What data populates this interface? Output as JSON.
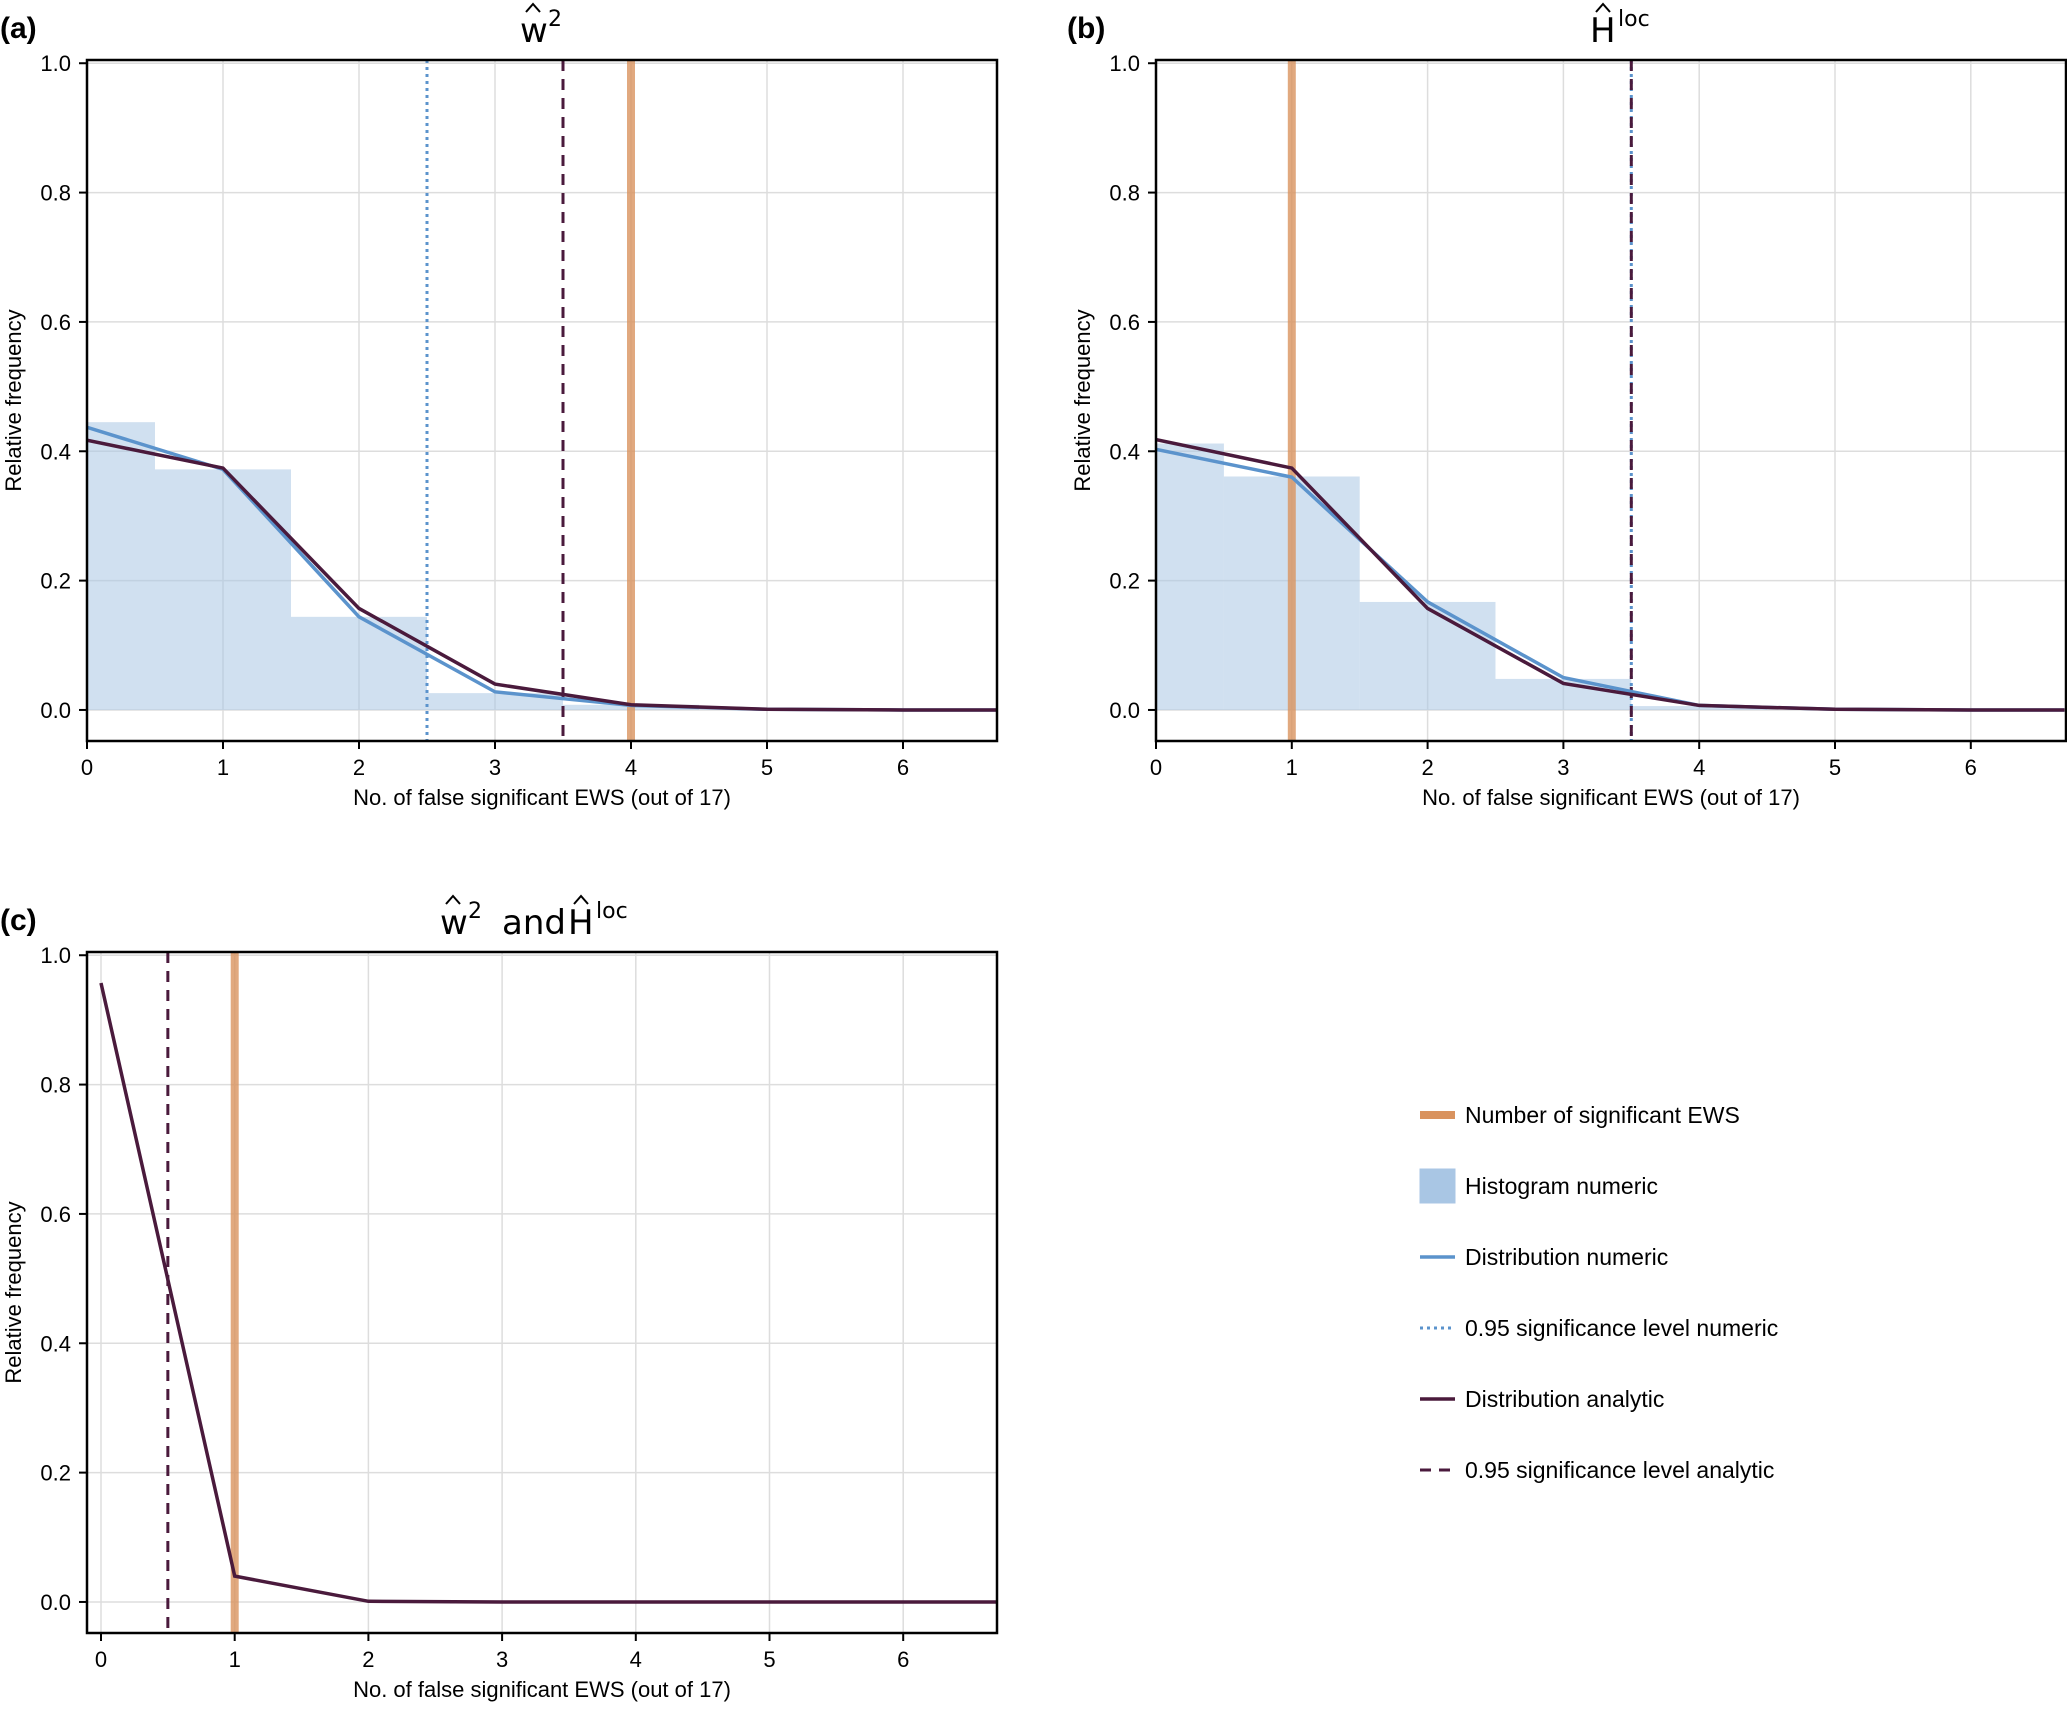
{
  "chart_data": [
    {
      "type": "line",
      "panel_label": "(a)",
      "title": {
        "base": "w",
        "hat": true,
        "sup": "2"
      },
      "title_text": "ŵ²",
      "xlabel": "No. of false significant EWS (out of 17)",
      "ylabel": "Relative frequency",
      "xlim": [
        0,
        6.69
      ],
      "ylim": [
        -0.048,
        1.005
      ],
      "xticks": [
        0,
        1,
        2,
        3,
        4,
        5,
        6
      ],
      "xtick_labels": [
        "0",
        "1",
        "2",
        "3",
        "4",
        "5",
        "6"
      ],
      "yticks": [
        0.0,
        0.2,
        0.4,
        0.6,
        0.8,
        1.0
      ],
      "ytick_labels": [
        "0.0",
        "0.2",
        "0.4",
        "0.6",
        "0.8",
        "1.0"
      ],
      "grid": true,
      "histogram_numeric": {
        "bin_edges": [
          0,
          0.5,
          1.5,
          2.5,
          3.5,
          4.5
        ],
        "values": [
          0.445,
          0.372,
          0.144,
          0.026,
          0.008
        ]
      },
      "series": [
        {
          "name": "Distribution numeric",
          "x": [
            0,
            1,
            2,
            3,
            4,
            5,
            6,
            6.69
          ],
          "y": [
            0.437,
            0.372,
            0.144,
            0.028,
            0.007,
            0.001,
            0.0,
            0.0
          ]
        },
        {
          "name": "Distribution analytic",
          "x": [
            0,
            1,
            2,
            3,
            4,
            5,
            6,
            6.69
          ],
          "y": [
            0.417,
            0.374,
            0.157,
            0.04,
            0.008,
            0.001,
            0.0,
            0.0
          ]
        }
      ],
      "vlines": [
        {
          "name": "0.95 significance level numeric",
          "x": 2.5
        },
        {
          "name": "0.95 significance level analytic",
          "x": 3.5
        },
        {
          "name": "Number of significant EWS",
          "x": 4
        }
      ]
    },
    {
      "type": "line",
      "panel_label": "(b)",
      "title": {
        "base": "H",
        "hat": true,
        "sup": "loc"
      },
      "title_text": "Ĥ^loc",
      "xlabel": "No. of false significant EWS (out of 17)",
      "ylabel": "Relative frequency",
      "xlim": [
        0,
        6.69
      ],
      "ylim": [
        -0.048,
        1.005
      ],
      "xticks": [
        0,
        1,
        2,
        3,
        4,
        5,
        6
      ],
      "xtick_labels": [
        "0",
        "1",
        "2",
        "3",
        "4",
        "5",
        "6"
      ],
      "yticks": [
        0.0,
        0.2,
        0.4,
        0.6,
        0.8,
        1.0
      ],
      "ytick_labels": [
        "0.0",
        "0.2",
        "0.4",
        "0.6",
        "0.8",
        "1.0"
      ],
      "grid": true,
      "histogram_numeric": {
        "bin_edges": [
          0,
          0.5,
          1.5,
          2.5,
          3.5,
          4.5
        ],
        "values": [
          0.412,
          0.361,
          0.167,
          0.048,
          0.006
        ]
      },
      "series": [
        {
          "name": "Distribution numeric",
          "x": [
            0,
            1,
            2,
            3,
            4,
            5,
            6,
            6.69
          ],
          "y": [
            0.403,
            0.36,
            0.167,
            0.05,
            0.007,
            0.001,
            0.0,
            0.0
          ]
        },
        {
          "name": "Distribution analytic",
          "x": [
            0,
            1,
            2,
            3,
            4,
            5,
            6,
            6.69
          ],
          "y": [
            0.418,
            0.374,
            0.157,
            0.041,
            0.007,
            0.001,
            0.0,
            0.0
          ]
        }
      ],
      "vlines": [
        {
          "name": "Number of significant EWS",
          "x": 1
        },
        {
          "name": "0.95 significance level numeric",
          "x": 3.5
        },
        {
          "name": "0.95 significance level analytic",
          "x": 3.5
        }
      ]
    },
    {
      "type": "line",
      "panel_label": "(c)",
      "title": {
        "parts": [
          {
            "base": "w",
            "hat": true,
            "sup": "2"
          },
          {
            "text": "and"
          },
          {
            "base": "H",
            "hat": true,
            "sup": "loc"
          }
        ]
      },
      "title_text": "ŵ² and Ĥ^loc",
      "xlabel": "No. of false significant EWS (out of 17)",
      "ylabel": "Relative frequency",
      "xlim": [
        -0.1,
        6.7
      ],
      "ylim": [
        -0.048,
        1.005
      ],
      "xticks": [
        0,
        1,
        2,
        3,
        4,
        5,
        6
      ],
      "xtick_labels": [
        "0",
        "1",
        "2",
        "3",
        "4",
        "5",
        "6"
      ],
      "yticks": [
        0.0,
        0.2,
        0.4,
        0.6,
        0.8,
        1.0
      ],
      "ytick_labels": [
        "0.0",
        "0.2",
        "0.4",
        "0.6",
        "0.8",
        "1.0"
      ],
      "grid": true,
      "series": [
        {
          "name": "Distribution analytic",
          "x": [
            0,
            1,
            2,
            3,
            4,
            5,
            6,
            6.7
          ],
          "y": [
            0.957,
            0.04,
            0.001,
            0.0,
            0.0,
            0.0,
            0.0,
            0.0
          ]
        }
      ],
      "vlines": [
        {
          "name": "0.95 significance level analytic",
          "x": 0.5
        },
        {
          "name": "Number of significant EWS",
          "x": 1
        }
      ]
    }
  ],
  "legend": {
    "placement": "bottom-right",
    "items": [
      {
        "label": "Number of significant EWS",
        "style": "thick-line",
        "color": "#d9935f"
      },
      {
        "label": "Histogram numeric",
        "style": "patch",
        "color": "#a9c6e4"
      },
      {
        "label": "Distribution numeric",
        "style": "line",
        "color": "#5b93cc"
      },
      {
        "label": "0.95 significance level numeric",
        "style": "dotted",
        "color": "#5b93cc"
      },
      {
        "label": "Distribution analytic",
        "style": "line",
        "color": "#4a1a3c"
      },
      {
        "label": "0.95 significance level analytic",
        "style": "dashed",
        "color": "#4a1a3c"
      }
    ]
  },
  "colors": {
    "significant_ews": "#d9935f",
    "histogram": "#d0dff0",
    "numeric": "#5b93cc",
    "analytic": "#4a1a3c",
    "grid": "#dddddd",
    "axis": "#000000"
  }
}
